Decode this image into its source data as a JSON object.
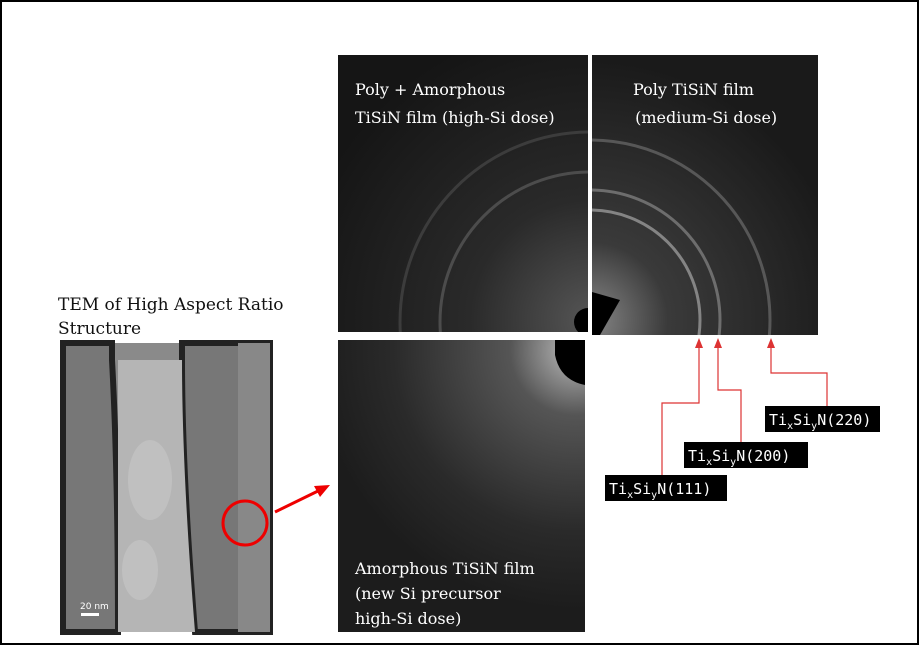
{
  "tem_caption": [
    "TEM of High Aspect Ratio",
    "Structure"
  ],
  "scale_bar": "20 nm",
  "panels": [
    {
      "caption": [
        "Poly + Amorphous",
        "TiSiN film (high-Si dose)"
      ]
    },
    {
      "caption": [
        "Poly TiSiN film",
        " (medium-Si dose)"
      ]
    },
    {
      "caption": [
        "Amorphous TiSiN film",
        "(new Si precursor",
        "high-Si dose)"
      ]
    }
  ],
  "ring_labels": [
    [
      "Ti",
      "x",
      "Si",
      "y",
      "N(220)"
    ],
    [
      "Ti",
      "x",
      "Si",
      "y",
      "N(200)"
    ],
    [
      "Ti",
      "x",
      "Si",
      "y",
      "N(111)"
    ]
  ]
}
